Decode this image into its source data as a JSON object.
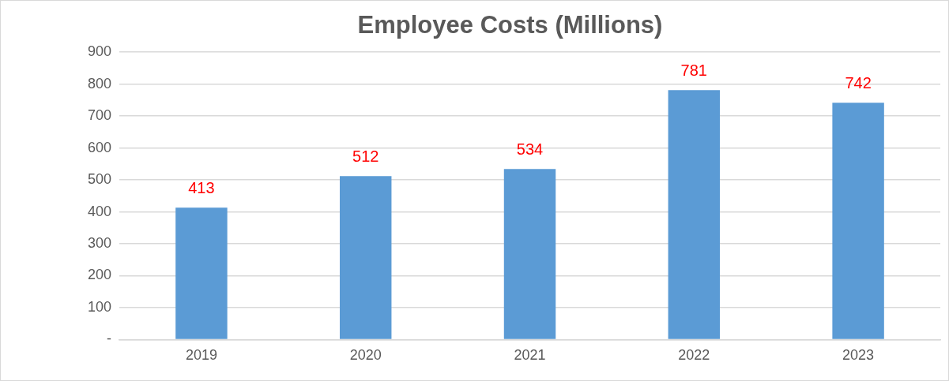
{
  "chart_data": {
    "type": "bar",
    "title": "Employee Costs (Millions)",
    "categories": [
      "2019",
      "2020",
      "2021",
      "2022",
      "2023"
    ],
    "values": [
      413,
      512,
      534,
      781,
      742
    ],
    "color": "#5b9bd5",
    "ylim": [
      0,
      900
    ],
    "yticks": [
      {
        "value": 0,
        "label": "-"
      },
      100,
      200,
      300,
      400,
      500,
      600,
      700,
      800,
      900
    ],
    "grid": "y",
    "data_labels": true,
    "legend": false
  }
}
